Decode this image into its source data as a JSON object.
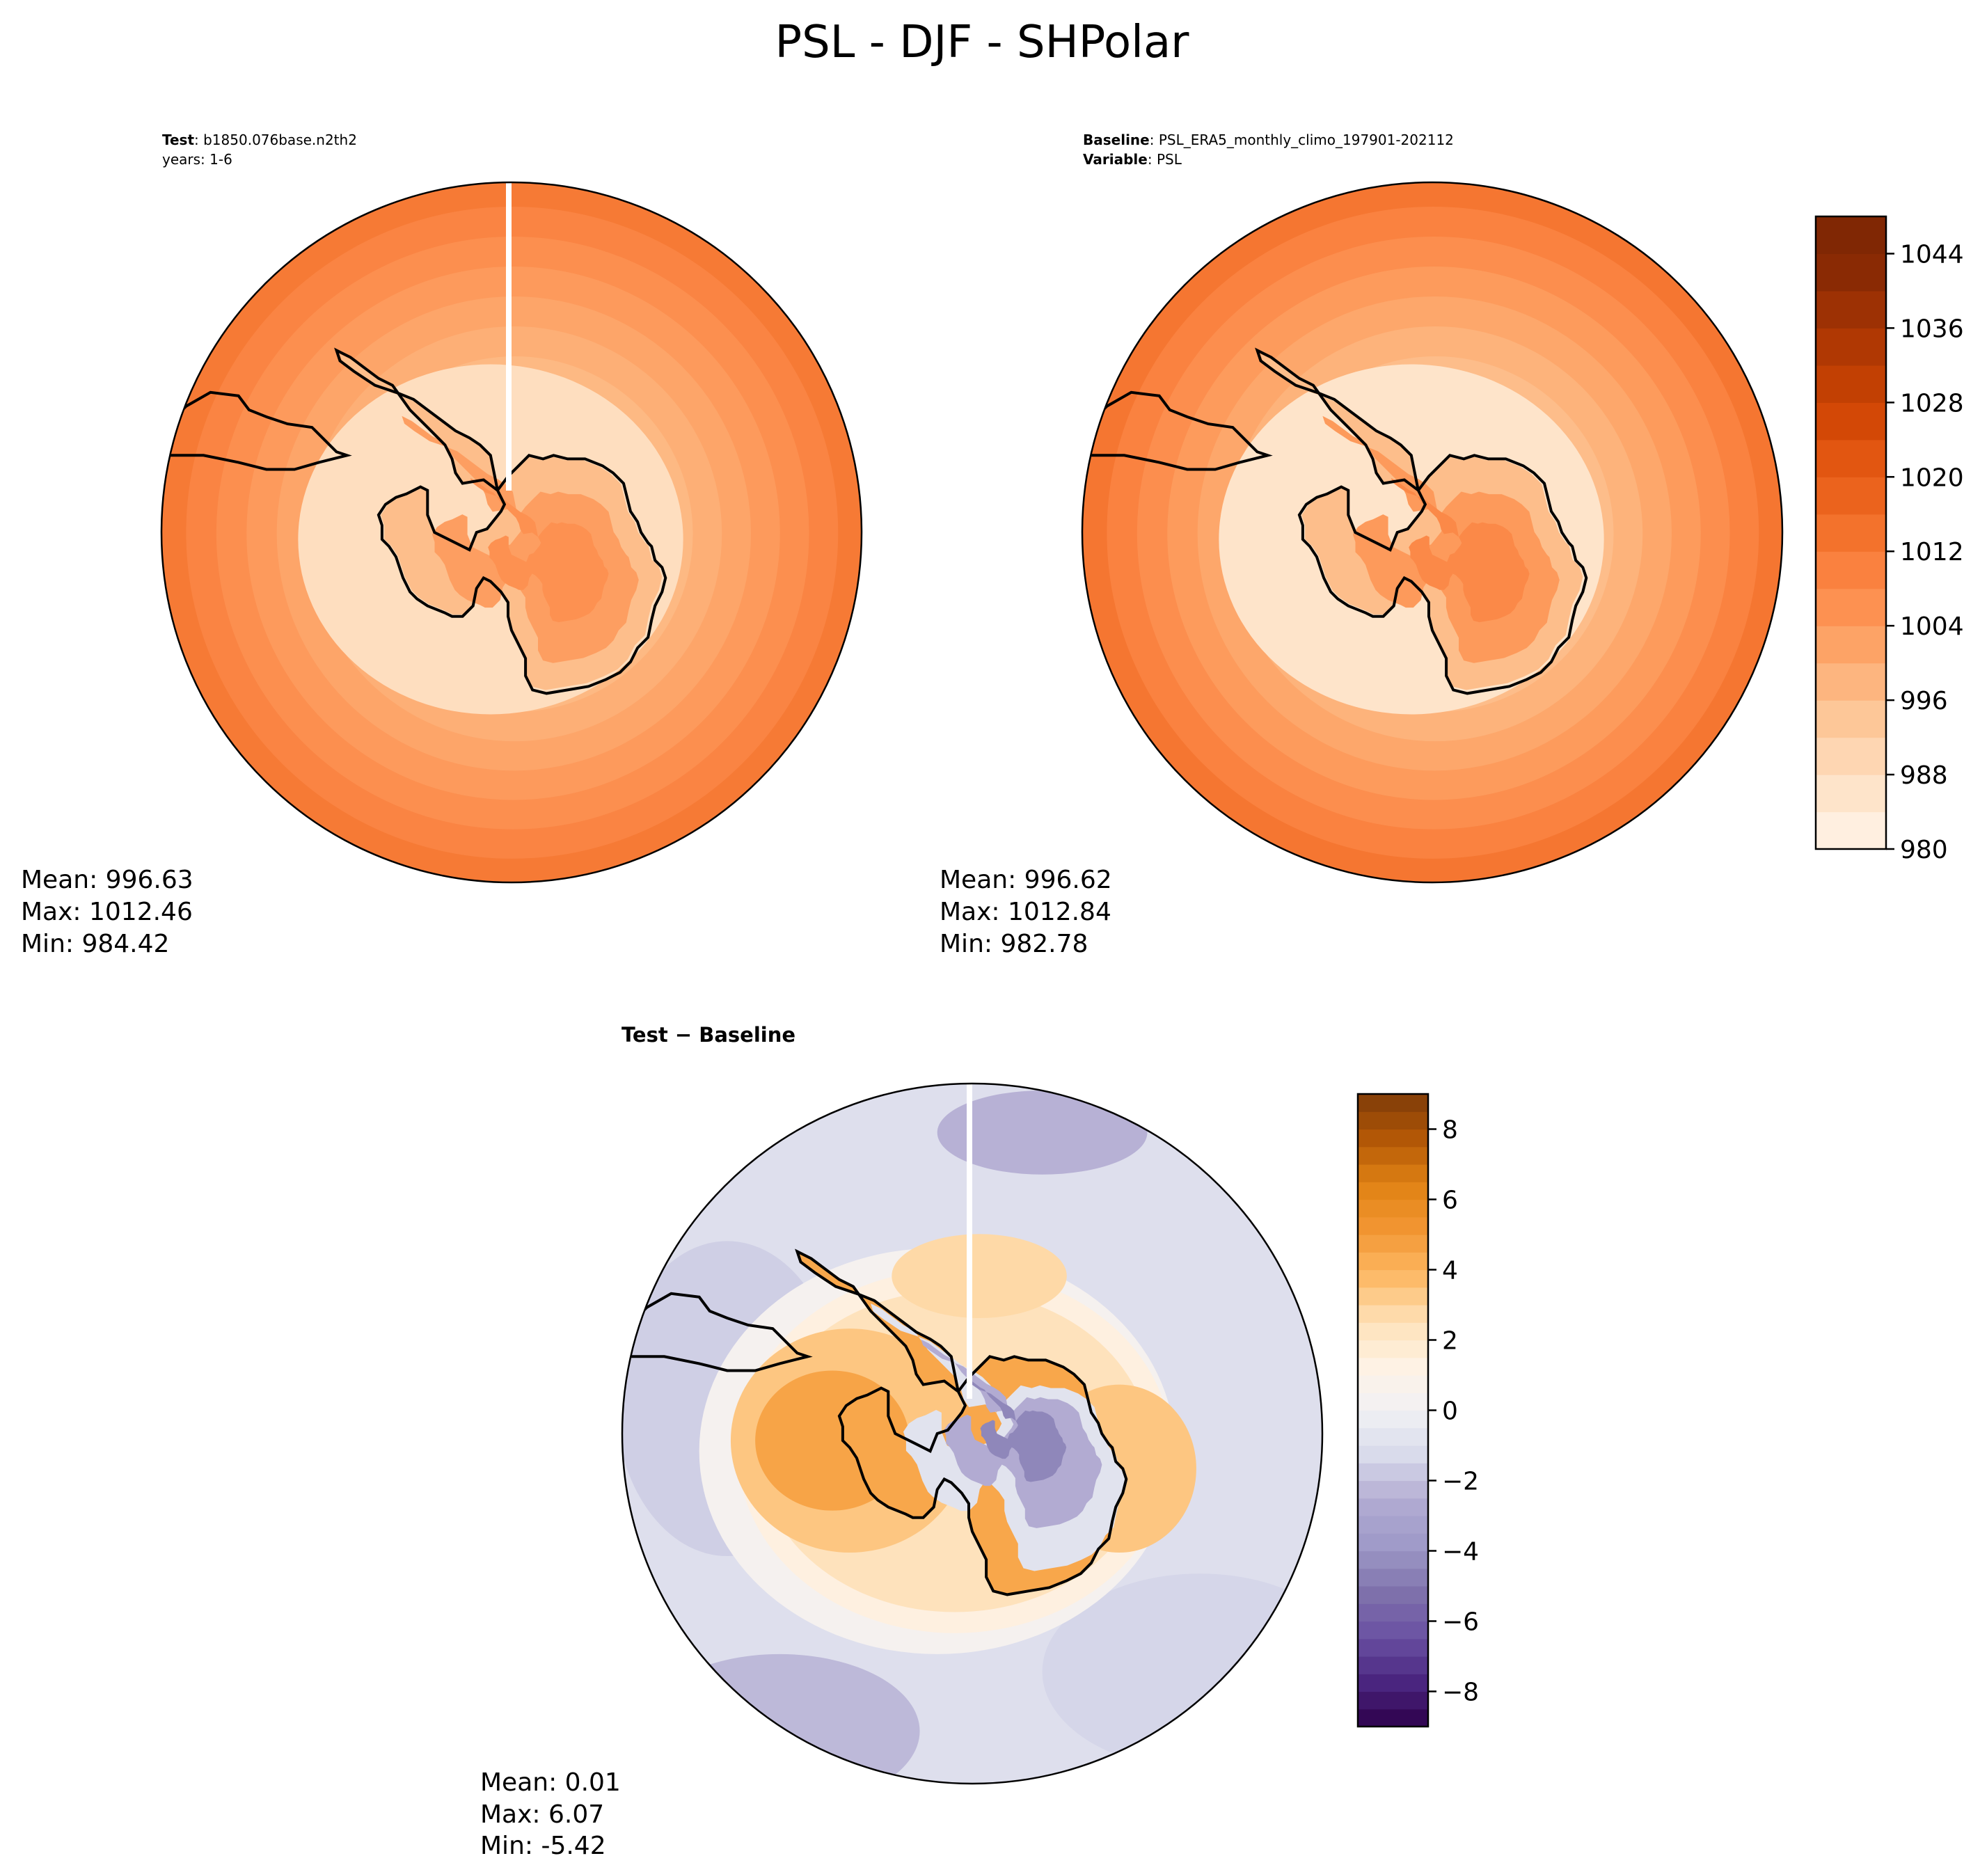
{
  "figure": {
    "title": "PSL - DJF - SHPolar"
  },
  "chart_data": [
    {
      "type": "heatmap",
      "id": "test",
      "projection": "south-polar-stereographic",
      "header": {
        "line1_label": "Test",
        "line1_value": ": b1850.076base.n2th2",
        "line2": "years: 1-6"
      },
      "stats": {
        "mean": "Mean: 996.63",
        "max": "Max: 1012.46",
        "min": "Min: 984.42"
      },
      "colormap": "Oranges",
      "levels": {
        "min": 980,
        "max": 1048,
        "step": 4
      },
      "field_estimate": {
        "edge_value": 1012,
        "inner_ring_value": 990,
        "continent_interior_value": 1006,
        "continent_coast_value": 996
      }
    },
    {
      "type": "heatmap",
      "id": "baseline",
      "projection": "south-polar-stereographic",
      "header": {
        "line1_label": "Baseline",
        "line1_value": ": PSL_ERA5_monthly_climo_197901-202112",
        "line2_label": "Variable",
        "line2_value": ": PSL"
      },
      "stats": {
        "mean": "Mean: 996.62",
        "max": "Max: 1012.84",
        "min": "Min: 982.78"
      },
      "colormap": "Oranges",
      "levels": {
        "min": 980,
        "max": 1048,
        "step": 4
      },
      "colorbar": {
        "ticks": [
          "980",
          "988",
          "996",
          "1004",
          "1012",
          "1020",
          "1028",
          "1036",
          "1044"
        ],
        "tick_values": [
          980,
          988,
          996,
          1004,
          1012,
          1020,
          1028,
          1036,
          1044
        ],
        "colors": [
          "#fff5eb",
          "#fee9d4",
          "#fedcbc",
          "#fdcca0",
          "#fdba85",
          "#fda66a",
          "#fd9353",
          "#fa8240",
          "#f3722c",
          "#eb621c",
          "#e15410",
          "#d04604",
          "#be3e03",
          "#aa3603",
          "#962e04",
          "#822804",
          "#7f2704"
        ]
      },
      "field_estimate": {
        "edge_value": 1013,
        "inner_ring_value": 988,
        "continent_interior_value": 1008,
        "continent_coast_value": 996
      }
    },
    {
      "type": "heatmap",
      "id": "difference",
      "projection": "south-polar-stereographic",
      "header": {
        "title": "Test − Baseline"
      },
      "stats": {
        "mean": "Mean:  0.01",
        "max": "Max:  6.07",
        "min": "Min: -5.42"
      },
      "colormap": "PuOr_r",
      "levels": {
        "min": -9,
        "max": 9,
        "step": 0.5
      },
      "colorbar": {
        "ticks": [
          "−8",
          "−6",
          "−4",
          "−2",
          "0",
          "2",
          "4",
          "6",
          "8"
        ],
        "tick_values": [
          -8,
          -6,
          -4,
          -2,
          0,
          2,
          4,
          6,
          8
        ],
        "colors": [
          "#2d004b",
          "#4b2680",
          "#6a51a3",
          "#8073ac",
          "#9e9ac8",
          "#b2abd2",
          "#d8daeb",
          "#f1f1f4",
          "#fef2e4",
          "#fee0b6",
          "#fdb863",
          "#f29632",
          "#e08214",
          "#b35806",
          "#7f3b08"
        ]
      },
      "field_estimate": {
        "ocean_value": -1,
        "ring_value": 3.5,
        "east_ross_value": 4.5,
        "east_antarctica_value": -4,
        "coast_value": 2
      }
    }
  ]
}
